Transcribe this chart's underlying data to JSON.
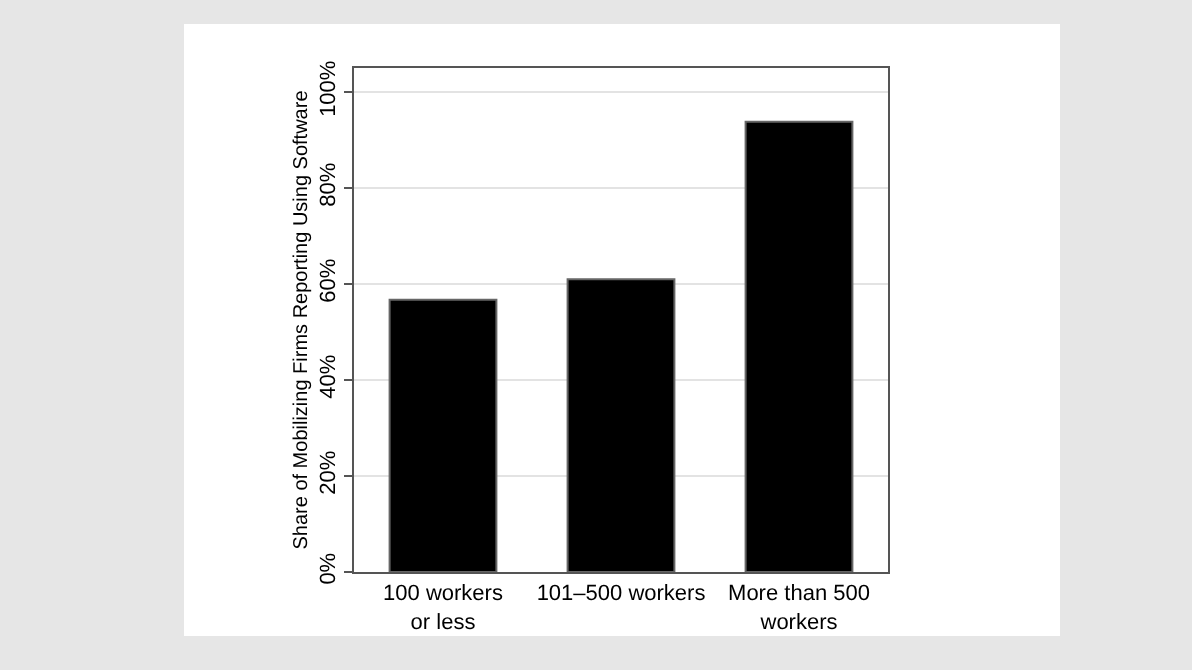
{
  "chart_data": {
    "type": "bar",
    "ylabel": "Share of Mobilizing Firms Reporting Using Software",
    "categories": [
      "100 workers\nor less",
      "101–500 workers",
      "More than 500\nworkers"
    ],
    "values": [
      56.7,
      61.0,
      93.8
    ],
    "color": "#000000",
    "ylim": [
      0,
      105
    ],
    "yticks": [
      {
        "value": 0,
        "label": "0%"
      },
      {
        "value": 20,
        "label": "20%"
      },
      {
        "value": 40,
        "label": "40%"
      },
      {
        "value": 60,
        "label": "60%"
      },
      {
        "value": 80,
        "label": "80%"
      },
      {
        "value": 100,
        "label": "100%"
      }
    ],
    "grid": "y"
  }
}
